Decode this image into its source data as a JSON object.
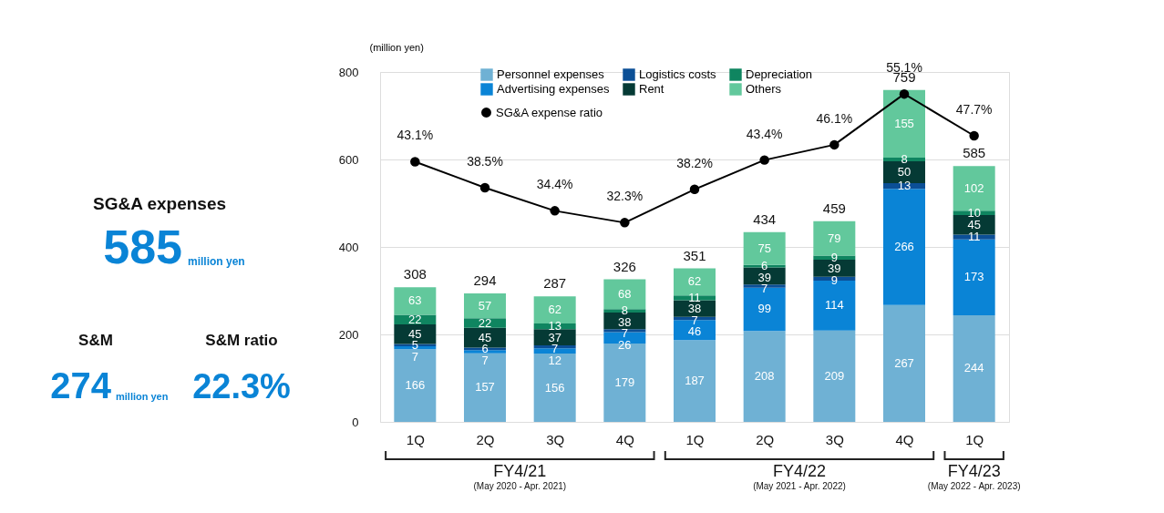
{
  "chart_data": [
    {
      "type": "other",
      "title": "SG&A expenses",
      "annotations": [
        "585",
        "million yen",
        "S&M",
        "274",
        "million yen",
        "S&M ratio",
        "22.3%"
      ]
    },
    {
      "type": "bar",
      "stacked": true,
      "ylabel": "(million yen)",
      "categories": [
        "1Q",
        "2Q",
        "3Q",
        "4Q",
        "1Q",
        "2Q",
        "3Q",
        "4Q",
        "1Q"
      ],
      "annotations": [
        "FY4/21",
        "(May 2020 - Apr. 2021)",
        "FY4/22",
        "(May 2021 - Apr. 2022)",
        "FY4/23",
        "(May 2022 - Apr. 2023)"
      ],
      "ylim": [
        0,
        800
      ],
      "yticks": [
        0,
        200,
        400,
        600,
        800
      ],
      "y2lim": [
        -3,
        59
      ],
      "grid": "y",
      "legend": "top left",
      "data_labels": true,
      "totals": [
        "308",
        "294",
        "287",
        "326",
        "351",
        "434",
        "459",
        "759",
        "585"
      ],
      "series": [
        {
          "name": "Personnel expenses",
          "color": "#6fb1d4",
          "values": [
            166,
            157,
            156,
            179,
            187,
            208,
            209,
            267,
            244
          ]
        },
        {
          "name": "Advertising expenses",
          "color": "#0a84d6",
          "values": [
            7,
            7,
            12,
            26,
            46,
            99,
            114,
            266,
            173
          ]
        },
        {
          "name": "Logistics costs",
          "color": "#0b4f96",
          "values": [
            5,
            6,
            7,
            7,
            7,
            7,
            9,
            13,
            11
          ]
        },
        {
          "name": "Rent",
          "color": "#053a35",
          "values": [
            45,
            45,
            37,
            38,
            38,
            39,
            39,
            50,
            45
          ]
        },
        {
          "name": "Depreciation",
          "color": "#0f8560",
          "values": [
            22,
            22,
            13,
            8,
            11,
            6,
            9,
            8,
            10
          ]
        },
        {
          "name": "Others",
          "color": "#62c89c",
          "values": [
            63,
            57,
            62,
            68,
            62,
            75,
            79,
            155,
            102
          ]
        },
        {
          "name": "SG&A expense ratio",
          "type": "line",
          "axis": "y2",
          "color": "#000000",
          "marker": "circle",
          "line_style": "solid",
          "values": [
            43.1,
            38.5,
            34.4,
            32.3,
            38.2,
            43.4,
            46.1,
            55.1,
            47.7
          ],
          "value_labels": [
            "43.1%",
            "38.5%",
            "34.4%",
            "32.3%",
            "38.2%",
            "43.4%",
            "46.1%",
            "55.1%",
            "47.7%"
          ]
        }
      ]
    }
  ]
}
